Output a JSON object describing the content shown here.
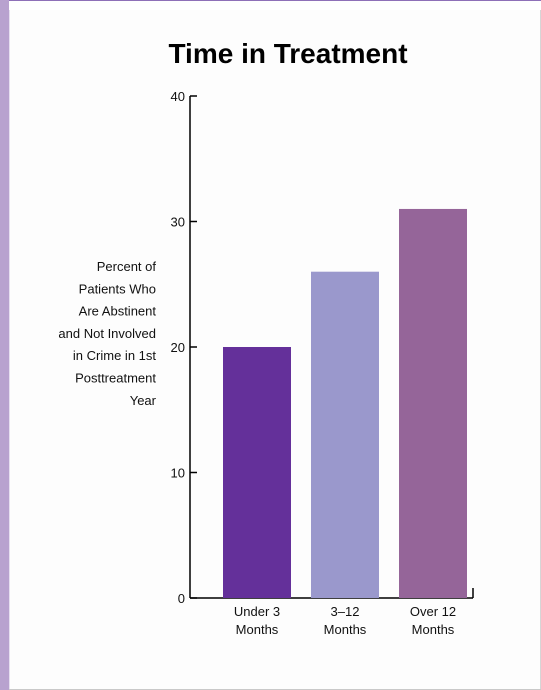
{
  "chart_data": {
    "type": "bar",
    "title": "Time in Treatment",
    "xlabel": "",
    "ylabel_lines": [
      "Percent of",
      "Patients Who",
      "Are Abstinent",
      "and Not Involved",
      "in Crime in 1st",
      "Posttreatment",
      "Year"
    ],
    "categories": [
      [
        "Under 3",
        "Months"
      ],
      [
        "3–12",
        "Months"
      ],
      [
        "Over 12",
        "Months"
      ]
    ],
    "values": [
      20,
      26,
      31
    ],
    "colors": [
      "#64309a",
      "#9a98cc",
      "#956599"
    ],
    "ylim": [
      0,
      40
    ],
    "yticks": [
      "0",
      "10",
      "20",
      "30",
      "40"
    ],
    "grid": false,
    "legend": "none"
  }
}
